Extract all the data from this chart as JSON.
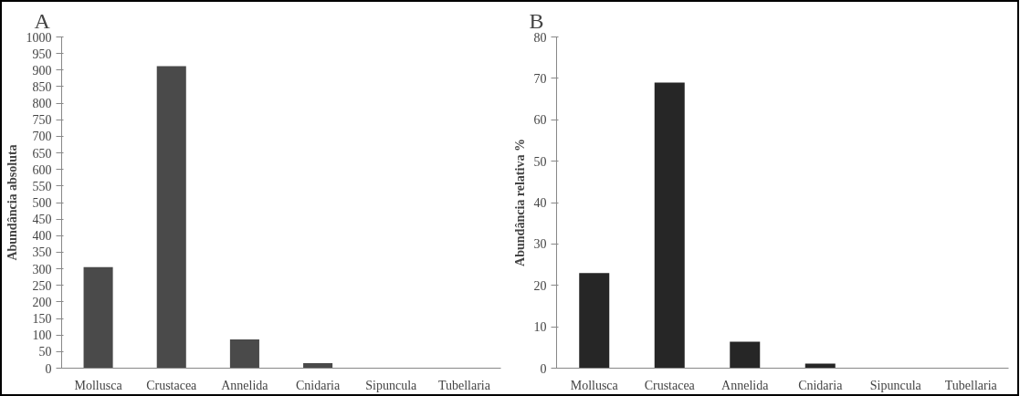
{
  "chart_data": [
    {
      "type": "bar",
      "title": "A",
      "ylabel": "Abundância absoluta",
      "categories": [
        "Mollusca",
        "Crustacea",
        "Annelida",
        "Cnidaria",
        "Sipuncula",
        "Tubellaria"
      ],
      "series": [
        {
          "color": "#4a4a4a",
          "values": [
            305,
            912,
            87,
            15,
            0,
            0
          ]
        }
      ],
      "ylim": [
        0,
        1000
      ],
      "yticks": [
        0,
        50,
        100,
        150,
        200,
        250,
        300,
        350,
        400,
        450,
        500,
        550,
        600,
        650,
        700,
        750,
        800,
        850,
        900,
        950,
        1000
      ],
      "grid": false
    },
    {
      "type": "bar",
      "title": "B",
      "ylabel": "Abundância relativa %",
      "categories": [
        "Mollusca",
        "Crustacea",
        "Annelida",
        "Cnidaria",
        "Sipuncula",
        "Tubellaria"
      ],
      "series": [
        {
          "color": "#262626",
          "values": [
            23,
            69,
            6.4,
            1.1,
            0,
            0
          ]
        }
      ],
      "ylim": [
        0,
        80
      ],
      "yticks": [
        0,
        10,
        20,
        30,
        40,
        50,
        60,
        70,
        80
      ],
      "grid": false
    }
  ]
}
